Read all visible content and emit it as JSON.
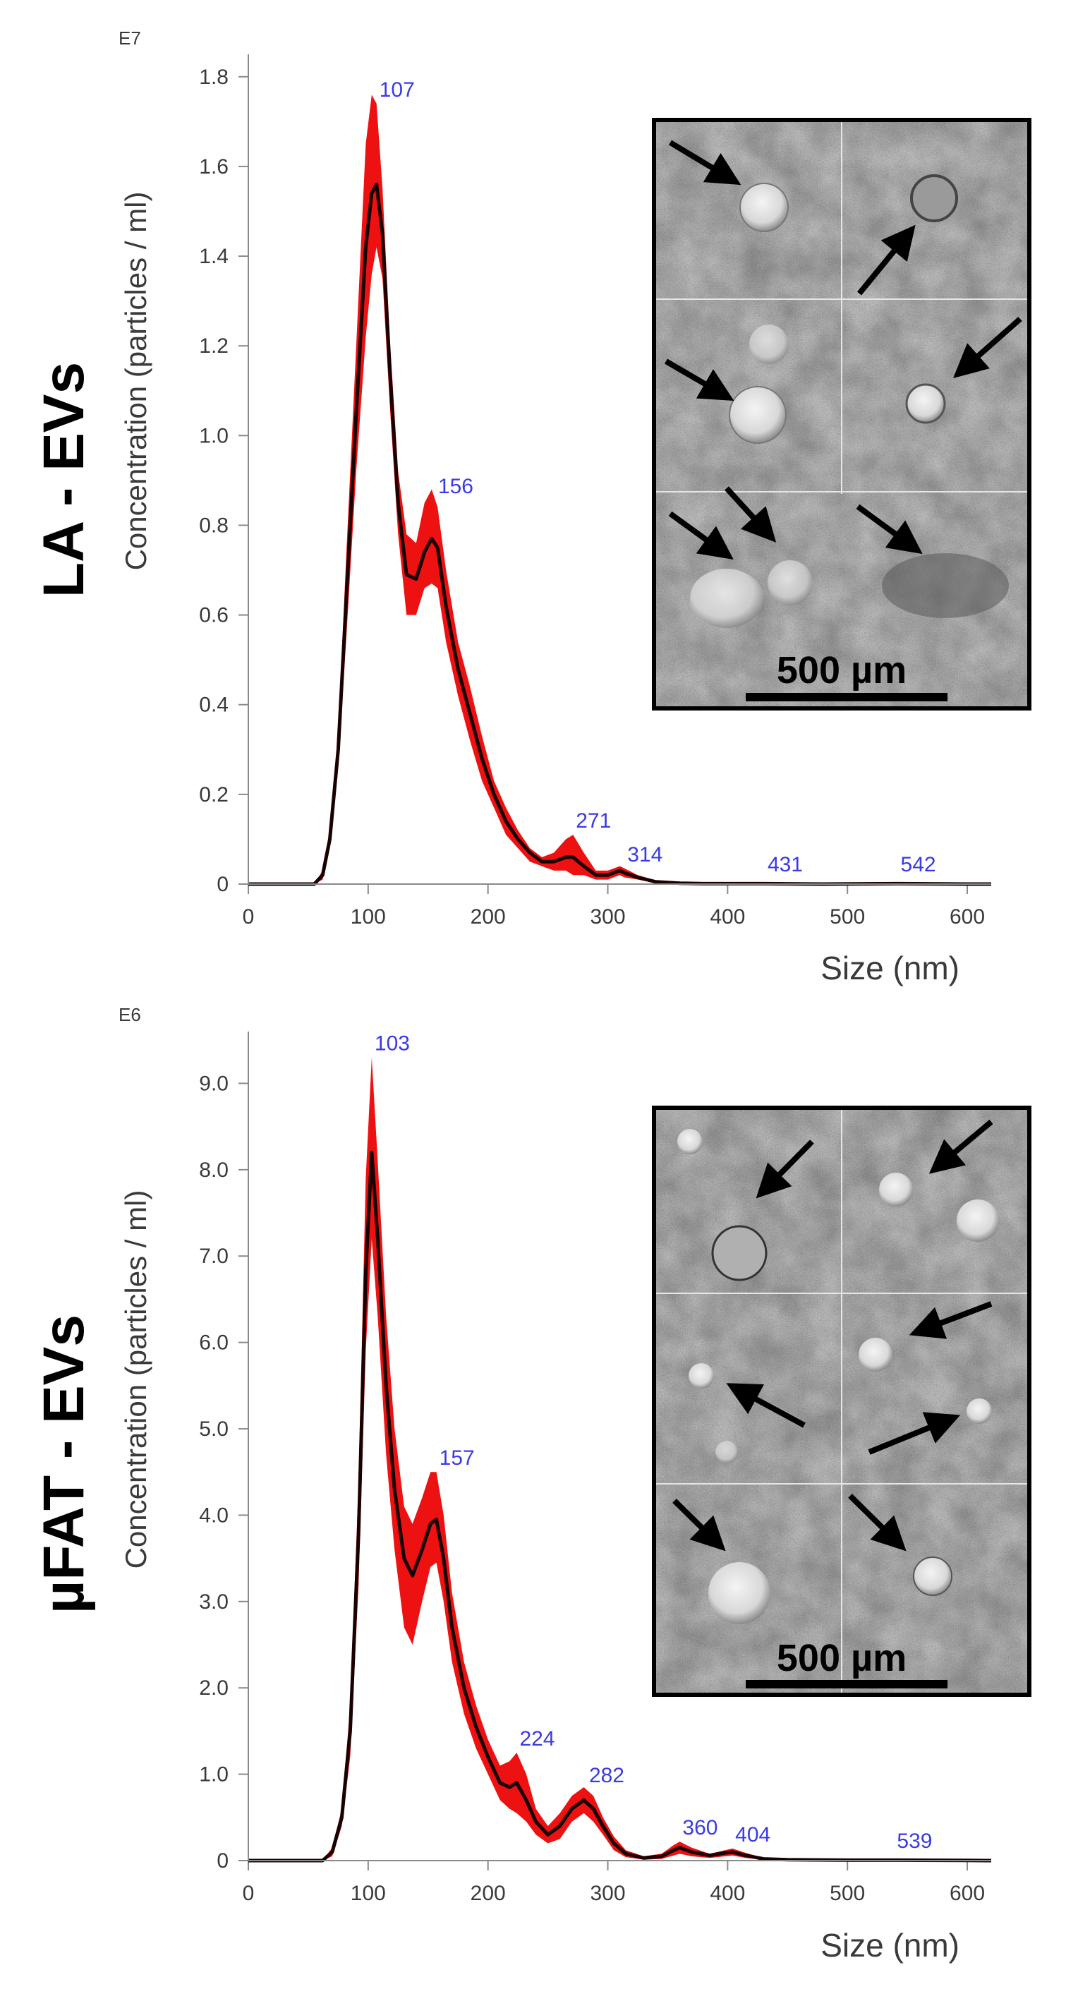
{
  "chart_data": [
    {
      "type": "area",
      "panel_title": "LA - EVs",
      "exponent_label": "E7",
      "ylabel": "Concentration (particles / ml)",
      "xlabel": "Size (nm)",
      "xlim": [
        0,
        620
      ],
      "ylim": [
        0,
        1.85
      ],
      "x_ticks": [
        0,
        100,
        200,
        300,
        400,
        500,
        600
      ],
      "x_tick_labels": [
        "0",
        "100",
        "200",
        "300",
        "400",
        "500",
        "600"
      ],
      "y_ticks": [
        0,
        0.2,
        0.4,
        0.6,
        0.8,
        1.0,
        1.2,
        1.4,
        1.6,
        1.8
      ],
      "y_tick_labels": [
        "0",
        "0.2",
        "0.4",
        "0.6",
        "0.8",
        "1.0",
        "1.2",
        "1.4",
        "1.6",
        "1.8"
      ],
      "series": [
        {
          "name": "mean",
          "color": "#1a0000",
          "x": [
            0,
            55,
            62,
            68,
            75,
            82,
            90,
            98,
            103,
            107,
            112,
            118,
            125,
            132,
            140,
            147,
            153,
            158,
            165,
            175,
            185,
            195,
            205,
            215,
            225,
            235,
            245,
            255,
            265,
            271,
            280,
            290,
            300,
            310,
            314,
            325,
            340,
            360,
            380,
            400,
            431,
            480,
            542,
            600,
            620
          ],
          "values": [
            0,
            0.0,
            0.02,
            0.1,
            0.3,
            0.65,
            1.05,
            1.42,
            1.54,
            1.56,
            1.45,
            1.15,
            0.85,
            0.69,
            0.68,
            0.74,
            0.77,
            0.75,
            0.62,
            0.48,
            0.38,
            0.28,
            0.2,
            0.14,
            0.1,
            0.07,
            0.05,
            0.05,
            0.06,
            0.06,
            0.04,
            0.02,
            0.02,
            0.03,
            0.025,
            0.015,
            0.005,
            0.002,
            0.001,
            0.001,
            0.001,
            0.0,
            0.001,
            0.0,
            0.0
          ]
        },
        {
          "name": "upper_error",
          "color": "#ee1111",
          "x": [
            0,
            55,
            62,
            68,
            75,
            82,
            90,
            98,
            103,
            107,
            112,
            118,
            125,
            132,
            140,
            147,
            153,
            158,
            165,
            175,
            185,
            195,
            205,
            215,
            225,
            235,
            245,
            255,
            265,
            271,
            280,
            290,
            300,
            310,
            314,
            325,
            340,
            360,
            380,
            400,
            431,
            480,
            542,
            600,
            620
          ],
          "values": [
            0,
            0.0,
            0.03,
            0.12,
            0.34,
            0.75,
            1.2,
            1.65,
            1.76,
            1.74,
            1.55,
            1.22,
            0.92,
            0.78,
            0.76,
            0.85,
            0.88,
            0.84,
            0.7,
            0.54,
            0.44,
            0.33,
            0.23,
            0.17,
            0.12,
            0.08,
            0.06,
            0.07,
            0.1,
            0.11,
            0.07,
            0.03,
            0.03,
            0.04,
            0.035,
            0.02,
            0.008,
            0.003,
            0.002,
            0.002,
            0.002,
            0.001,
            0.002,
            0.001,
            0.0
          ]
        },
        {
          "name": "lower_error",
          "color": "#ee1111",
          "x": [
            0,
            55,
            62,
            68,
            75,
            82,
            90,
            98,
            103,
            107,
            112,
            118,
            125,
            132,
            140,
            147,
            153,
            158,
            165,
            175,
            185,
            195,
            205,
            215,
            225,
            235,
            245,
            255,
            265,
            271,
            280,
            290,
            300,
            310,
            314,
            325,
            340,
            360,
            380,
            400,
            431,
            480,
            542,
            600,
            620
          ],
          "values": [
            0,
            0.0,
            0.01,
            0.08,
            0.26,
            0.56,
            0.92,
            1.22,
            1.36,
            1.42,
            1.35,
            1.07,
            0.78,
            0.6,
            0.6,
            0.66,
            0.67,
            0.66,
            0.54,
            0.42,
            0.32,
            0.23,
            0.17,
            0.11,
            0.08,
            0.05,
            0.04,
            0.03,
            0.03,
            0.02,
            0.02,
            0.01,
            0.01,
            0.02,
            0.015,
            0.01,
            0.002,
            0.0,
            0.0,
            0.0,
            0.0,
            0.0,
            0.0,
            0.0,
            0.0
          ]
        }
      ],
      "peak_labels": [
        {
          "x": 107,
          "text": "107"
        },
        {
          "x": 156,
          "text": "156"
        },
        {
          "x": 271,
          "text": "271"
        },
        {
          "x": 314,
          "text": "314"
        },
        {
          "x": 431,
          "text": "431"
        },
        {
          "x": 542,
          "text": "542"
        }
      ],
      "inset": {
        "scale_bar_label": "500 µm"
      }
    },
    {
      "type": "area",
      "panel_title": "µFAT - EVs",
      "exponent_label": "E6",
      "ylabel": "Concentration (particles / ml)",
      "xlabel": "Size (nm)",
      "xlim": [
        0,
        620
      ],
      "ylim": [
        0,
        9.6
      ],
      "x_ticks": [
        0,
        100,
        200,
        300,
        400,
        500,
        600
      ],
      "x_tick_labels": [
        "0",
        "100",
        "200",
        "300",
        "400",
        "500",
        "600"
      ],
      "y_ticks": [
        0,
        1,
        2,
        3,
        4,
        5,
        6,
        7,
        8,
        9
      ],
      "y_tick_labels": [
        "0",
        "1.0",
        "2.0",
        "3.0",
        "4.0",
        "5.0",
        "6.0",
        "7.0",
        "8.0",
        "9.0"
      ],
      "series": [
        {
          "name": "mean",
          "color": "#1a0000",
          "x": [
            0,
            62,
            70,
            78,
            85,
            92,
            98,
            103,
            108,
            115,
            122,
            130,
            137,
            145,
            152,
            157,
            163,
            170,
            180,
            190,
            200,
            210,
            218,
            224,
            232,
            240,
            250,
            260,
            270,
            280,
            288,
            296,
            305,
            315,
            330,
            345,
            355,
            360,
            370,
            385,
            398,
            404,
            415,
            430,
            450,
            500,
            539,
            600,
            620
          ],
          "values": [
            0,
            0.0,
            0.1,
            0.5,
            1.5,
            3.8,
            6.8,
            8.2,
            7.2,
            5.5,
            4.3,
            3.5,
            3.3,
            3.6,
            3.9,
            3.95,
            3.5,
            2.7,
            2.0,
            1.55,
            1.2,
            0.9,
            0.85,
            0.9,
            0.7,
            0.45,
            0.3,
            0.4,
            0.6,
            0.7,
            0.6,
            0.4,
            0.2,
            0.08,
            0.03,
            0.05,
            0.12,
            0.15,
            0.1,
            0.06,
            0.09,
            0.1,
            0.06,
            0.02,
            0.01,
            0.005,
            0.005,
            0.002,
            0.0
          ]
        },
        {
          "name": "upper_error",
          "color": "#ee1111",
          "x": [
            0,
            62,
            70,
            78,
            85,
            92,
            98,
            103,
            108,
            115,
            122,
            130,
            137,
            145,
            152,
            157,
            163,
            170,
            180,
            190,
            200,
            210,
            218,
            224,
            232,
            240,
            250,
            260,
            270,
            280,
            288,
            296,
            305,
            315,
            330,
            345,
            355,
            360,
            370,
            385,
            398,
            404,
            415,
            430,
            450,
            500,
            539,
            600,
            620
          ],
          "values": [
            0,
            0.0,
            0.15,
            0.6,
            1.8,
            4.4,
            7.9,
            9.3,
            8.1,
            6.3,
            5.0,
            4.1,
            3.9,
            4.2,
            4.5,
            4.5,
            4.0,
            3.1,
            2.3,
            1.8,
            1.4,
            1.1,
            1.15,
            1.25,
            1.0,
            0.6,
            0.4,
            0.55,
            0.75,
            0.85,
            0.75,
            0.5,
            0.28,
            0.12,
            0.05,
            0.08,
            0.18,
            0.22,
            0.15,
            0.08,
            0.12,
            0.14,
            0.09,
            0.03,
            0.015,
            0.008,
            0.008,
            0.004,
            0.0
          ]
        },
        {
          "name": "lower_error",
          "color": "#ee1111",
          "x": [
            0,
            62,
            70,
            78,
            85,
            92,
            98,
            103,
            108,
            115,
            122,
            130,
            137,
            145,
            152,
            157,
            163,
            170,
            180,
            190,
            200,
            210,
            218,
            224,
            232,
            240,
            250,
            260,
            270,
            280,
            288,
            296,
            305,
            315,
            330,
            345,
            355,
            360,
            370,
            385,
            398,
            404,
            415,
            430,
            450,
            500,
            539,
            600,
            620
          ],
          "values": [
            0,
            0.0,
            0.05,
            0.4,
            1.2,
            3.2,
            5.9,
            7.2,
            6.3,
            4.7,
            3.6,
            2.7,
            2.5,
            3.0,
            3.4,
            3.45,
            3.0,
            2.3,
            1.7,
            1.3,
            1.0,
            0.7,
            0.6,
            0.55,
            0.45,
            0.3,
            0.2,
            0.25,
            0.45,
            0.55,
            0.45,
            0.3,
            0.12,
            0.04,
            0.01,
            0.02,
            0.06,
            0.08,
            0.05,
            0.03,
            0.05,
            0.06,
            0.03,
            0.01,
            0.005,
            0.002,
            0.002,
            0.0,
            0.0
          ]
        }
      ],
      "peak_labels": [
        {
          "x": 103,
          "text": "103"
        },
        {
          "x": 157,
          "text": "157"
        },
        {
          "x": 224,
          "text": "224"
        },
        {
          "x": 282,
          "text": "282"
        },
        {
          "x": 360,
          "text": "360"
        },
        {
          "x": 404,
          "text": "404"
        },
        {
          "x": 539,
          "text": "539"
        }
      ],
      "inset": {
        "scale_bar_label": "500 µm"
      }
    }
  ]
}
